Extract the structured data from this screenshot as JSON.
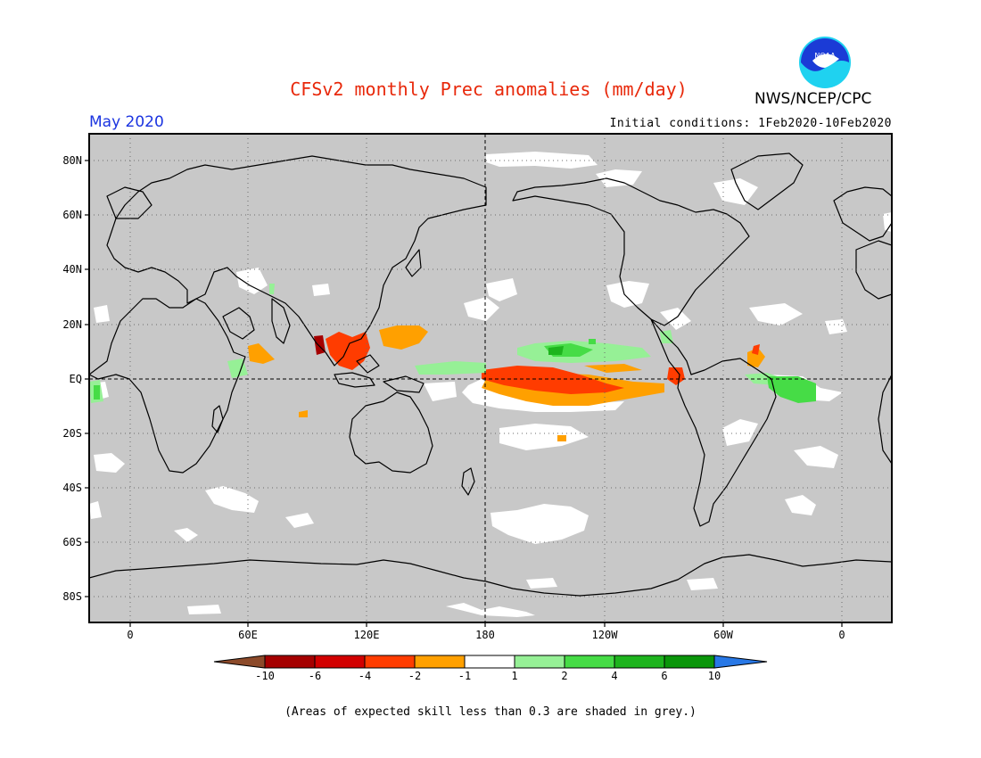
{
  "header": {
    "title": "CFSv2 monthly Prec anomalies (mm/day)",
    "organization": "NWS/NCEP/CPC",
    "logo_text": "NOAA",
    "valid_month": "May 2020",
    "initial_conditions": "Initial conditions: 1Feb2020-10Feb2020"
  },
  "map": {
    "lat_labels": [
      "80N",
      "60N",
      "40N",
      "20N",
      "EQ",
      "20S",
      "40S",
      "60S",
      "80S"
    ],
    "lon_labels": [
      "0",
      "60E",
      "120E",
      "180",
      "120W",
      "60W",
      "0"
    ],
    "background_color": "#c8c8c8",
    "frame_color": "#000000"
  },
  "colorbar": {
    "labels": [
      "-10",
      "-6",
      "-4",
      "-2",
      "-1",
      "1",
      "2",
      "4",
      "6",
      "10"
    ],
    "colors": [
      "#8c4a2a",
      "#a50000",
      "#d20000",
      "#ff3c00",
      "#ffa000",
      "#ffffff",
      "#96f096",
      "#46dc46",
      "#1eb41e",
      "#0a960a",
      "#2878e6"
    ]
  },
  "footnote": "(Areas of expected skill less than 0.3 are shaded in grey.)"
}
